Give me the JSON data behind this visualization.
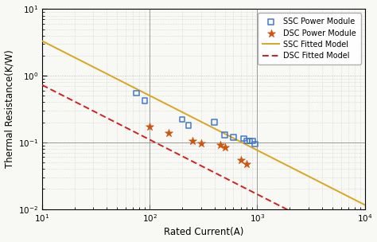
{
  "ssc_x": [
    75,
    90,
    200,
    230,
    400,
    500,
    600,
    750,
    800,
    850,
    900,
    950
  ],
  "ssc_y": [
    0.55,
    0.42,
    0.22,
    0.18,
    0.2,
    0.13,
    0.12,
    0.115,
    0.105,
    0.105,
    0.105,
    0.095
  ],
  "dsc_x": [
    100,
    150,
    250,
    300,
    450,
    500,
    700,
    800
  ],
  "dsc_y": [
    0.175,
    0.14,
    0.105,
    0.097,
    0.092,
    0.085,
    0.055,
    0.048
  ],
  "ssc_fit_coeff": 22.0,
  "ssc_fit_exp": -0.82,
  "dsc_fit_coeff": 4.8,
  "dsc_fit_exp": -0.82,
  "ssc_line_color": "#DAA520",
  "dsc_line_color": "#CC2222",
  "ssc_marker_color": "#4477CC",
  "dsc_marker_color": "#CC5511",
  "xlim": [
    10,
    10000
  ],
  "ylim": [
    0.01,
    10
  ],
  "xlabel": "Rated Current(A)",
  "ylabel": "Thermal Resistance(K/W)",
  "legend_labels": [
    "SSC Power Module",
    "DSC Power Module",
    "SSC Fitted Model",
    "DSC Fitted Model"
  ],
  "bg_color": "#f8f8f5",
  "grid_dotted_color": "#aaaaaa",
  "vline_color": "#888888",
  "hline_color": "#888888"
}
